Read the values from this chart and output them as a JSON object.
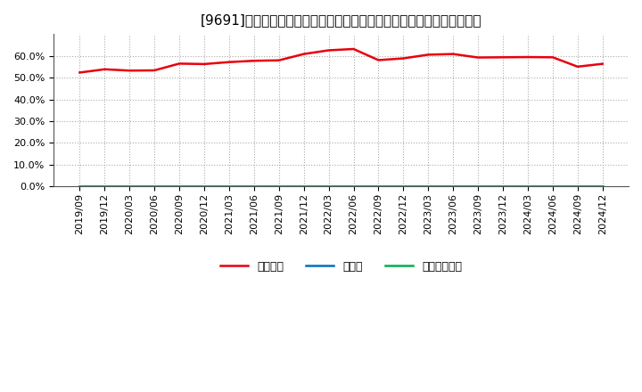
{
  "title": "[9691]　自己資本、のれん、繰延税金資産の総資産に対する比率の推移",
  "x_labels": [
    "2019/09",
    "2019/12",
    "2020/03",
    "2020/06",
    "2020/09",
    "2020/12",
    "2021/03",
    "2021/06",
    "2021/09",
    "2021/12",
    "2022/03",
    "2022/06",
    "2022/09",
    "2022/12",
    "2023/03",
    "2023/06",
    "2023/09",
    "2023/12",
    "2024/03",
    "2024/06",
    "2024/09",
    "2024/12"
  ],
  "equity_ratio": [
    52.3,
    53.8,
    53.2,
    53.3,
    56.4,
    56.2,
    57.1,
    57.7,
    57.9,
    60.8,
    62.5,
    63.1,
    58.0,
    58.8,
    60.5,
    60.8,
    59.2,
    59.3,
    59.4,
    59.3,
    55.0,
    56.3
  ],
  "noren_ratio": [
    0.0,
    0.0,
    0.0,
    0.0,
    0.0,
    0.0,
    0.0,
    0.0,
    0.0,
    0.0,
    0.0,
    0.0,
    0.0,
    0.0,
    0.0,
    0.0,
    0.0,
    0.0,
    0.0,
    0.0,
    0.0,
    0.0
  ],
  "deferred_tax_ratio": [
    0.0,
    0.0,
    0.0,
    0.0,
    0.0,
    0.0,
    0.0,
    0.0,
    0.0,
    0.0,
    0.0,
    0.0,
    0.0,
    0.0,
    0.0,
    0.0,
    0.0,
    0.0,
    0.0,
    0.0,
    0.0,
    0.0
  ],
  "equity_color": "#e8000d",
  "noren_color": "#0070c0",
  "deferred_color": "#00b050",
  "background_color": "#ffffff",
  "plot_bg_color": "#ffffff",
  "grid_color": "#aaaaaa",
  "ylim_min": 0.0,
  "ylim_max": 70.0,
  "yticks": [
    0.0,
    10.0,
    20.0,
    30.0,
    40.0,
    50.0,
    60.0
  ],
  "legend_labels": [
    "自己資本",
    "のれん",
    "繰延税金資産"
  ],
  "title_fontsize": 11,
  "axis_fontsize": 8,
  "legend_fontsize": 9
}
